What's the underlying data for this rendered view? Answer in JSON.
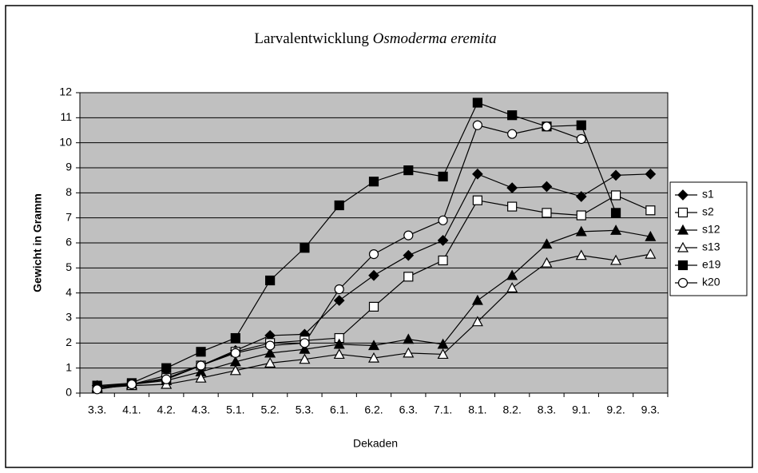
{
  "chart_data": {
    "type": "line",
    "title": "Larvalentwicklung",
    "title_italic": "Osmoderma eremita",
    "x_label": "Dekaden",
    "y_label": "Gewicht in Gramm",
    "categories": [
      "3.3.",
      "4.1.",
      "4.2.",
      "4.3.",
      "5.1.",
      "5.2.",
      "5.3.",
      "6.1.",
      "6.2.",
      "6.3.",
      "7.1.",
      "8.1.",
      "8.2.",
      "8.3.",
      "9.1.",
      "9.2.",
      "9.3."
    ],
    "ylim": [
      0,
      12
    ],
    "yticks": [
      0,
      1,
      2,
      3,
      4,
      5,
      6,
      7,
      8,
      9,
      10,
      11,
      12
    ],
    "grid": true,
    "plot_background": "#c0c0c0",
    "legend": "right",
    "series": [
      {
        "name": "s1",
        "color": "#000000",
        "marker": "diamond",
        "filled": true,
        "values": [
          0.3,
          0.35,
          0.7,
          1.1,
          1.7,
          2.3,
          2.35,
          3.7,
          4.7,
          5.5,
          6.1,
          8.75,
          8.2,
          8.25,
          7.85,
          8.7,
          8.75
        ]
      },
      {
        "name": "s2",
        "color": "#000000",
        "marker": "square",
        "filled": false,
        "values": [
          0.2,
          0.35,
          0.6,
          1.1,
          1.65,
          2.0,
          2.1,
          2.2,
          3.45,
          4.65,
          5.3,
          7.7,
          7.45,
          7.2,
          7.1,
          7.9,
          7.3
        ]
      },
      {
        "name": "s12",
        "color": "#000000",
        "marker": "triangle",
        "filled": true,
        "values": [
          0.25,
          0.35,
          0.5,
          0.85,
          1.25,
          1.6,
          1.75,
          1.95,
          1.9,
          2.15,
          1.95,
          3.7,
          4.7,
          5.95,
          6.45,
          6.5,
          6.25
        ]
      },
      {
        "name": "s13",
        "color": "#000000",
        "marker": "triangle",
        "filled": false,
        "values": [
          0.2,
          0.3,
          0.35,
          0.6,
          0.9,
          1.2,
          1.35,
          1.55,
          1.4,
          1.6,
          1.55,
          2.85,
          4.2,
          5.2,
          5.5,
          5.3,
          5.55
        ]
      },
      {
        "name": "e19",
        "color": "#000000",
        "marker": "square",
        "filled": true,
        "values": [
          0.3,
          0.4,
          1.0,
          1.65,
          2.2,
          4.5,
          5.8,
          7.5,
          8.45,
          8.9,
          8.65,
          11.6,
          11.1,
          10.65,
          10.7,
          7.2,
          null
        ]
      },
      {
        "name": "k20",
        "color": "#000000",
        "marker": "circle",
        "filled": false,
        "values": [
          0.15,
          0.35,
          0.55,
          1.1,
          1.6,
          1.9,
          2.0,
          4.15,
          5.55,
          6.3,
          6.9,
          10.7,
          10.35,
          10.65,
          10.15,
          null,
          null
        ]
      }
    ]
  }
}
